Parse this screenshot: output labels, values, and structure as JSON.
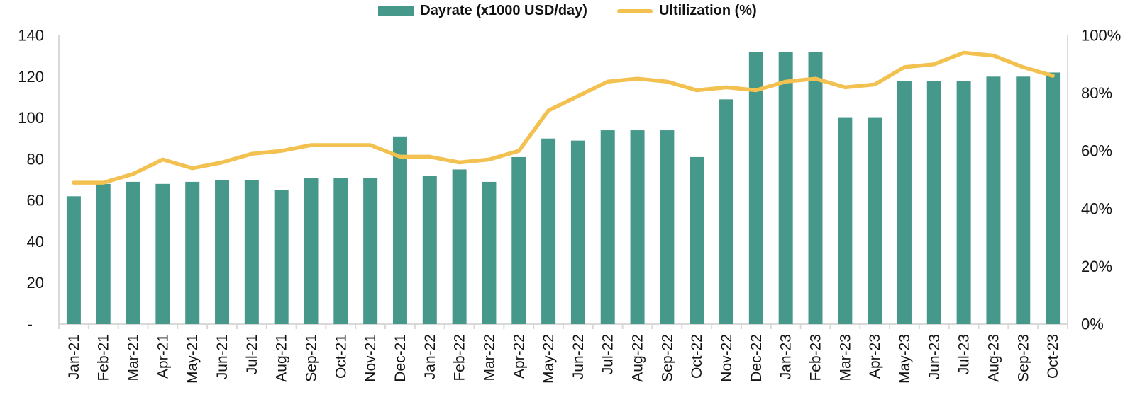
{
  "legend": {
    "dayrate_label": "Dayrate (x1000 USD/day)",
    "utilization_label": "Ultilization (%)"
  },
  "colors": {
    "bar": "#46998A",
    "line": "#F2C14F",
    "axis": "#D9D9D9",
    "text": "#151515"
  },
  "chart_data": {
    "type": "combo (bar + line, dual axis)",
    "title": "",
    "grid": false,
    "legend_position": "top-center",
    "categories": [
      "Jan-21",
      "Feb-21",
      "Mar-21",
      "Apr-21",
      "May-21",
      "Jun-21",
      "Jul-21",
      "Aug-21",
      "Sep-21",
      "Oct-21",
      "Nov-21",
      "Dec-21",
      "Jan-22",
      "Feb-22",
      "Mar-22",
      "Apr-22",
      "May-22",
      "Jun-22",
      "Jul-22",
      "Aug-22",
      "Sep-22",
      "Oct-22",
      "Nov-22",
      "Dec-22",
      "Jan-23",
      "Feb-23",
      "Mar-23",
      "Apr-23",
      "May-23",
      "Jun-23",
      "Jul-23",
      "Aug-23",
      "Sep-23",
      "Oct-23"
    ],
    "series": [
      {
        "name": "Dayrate (x1000 USD/day)",
        "type": "bar",
        "axis": "left",
        "values": [
          62,
          68,
          69,
          68,
          69,
          70,
          70,
          65,
          71,
          71,
          71,
          91,
          72,
          75,
          69,
          81,
          90,
          89,
          94,
          94,
          94,
          81,
          109,
          132,
          132,
          132,
          100,
          100,
          118,
          118,
          118,
          120,
          120,
          122
        ]
      },
      {
        "name": "Ultilization (%)",
        "type": "line",
        "axis": "right",
        "values": [
          49,
          49,
          52,
          57,
          54,
          56,
          59,
          60,
          62,
          62,
          62,
          58,
          58,
          56,
          57,
          60,
          74,
          79,
          84,
          85,
          84,
          81,
          82,
          81,
          84,
          85,
          82,
          83,
          89,
          90,
          94,
          93,
          89,
          86
        ]
      }
    ],
    "left_axis": {
      "min": 0,
      "max": 140,
      "ticks": [
        {
          "label": "140",
          "value": 140
        },
        {
          "label": "120",
          "value": 120
        },
        {
          "label": "100",
          "value": 100
        },
        {
          "label": "80",
          "value": 80
        },
        {
          "label": "60",
          "value": 60
        },
        {
          "label": "40",
          "value": 40
        },
        {
          "label": "20",
          "value": 20
        },
        {
          "label": "-",
          "value": 0
        }
      ]
    },
    "right_axis": {
      "min": 0,
      "max": 100,
      "ticks": [
        {
          "label": "100%",
          "value": 100
        },
        {
          "label": "80%",
          "value": 80
        },
        {
          "label": "60%",
          "value": 60
        },
        {
          "label": "40%",
          "value": 40
        },
        {
          "label": "20%",
          "value": 20
        },
        {
          "label": "0%",
          "value": 0
        }
      ]
    }
  }
}
